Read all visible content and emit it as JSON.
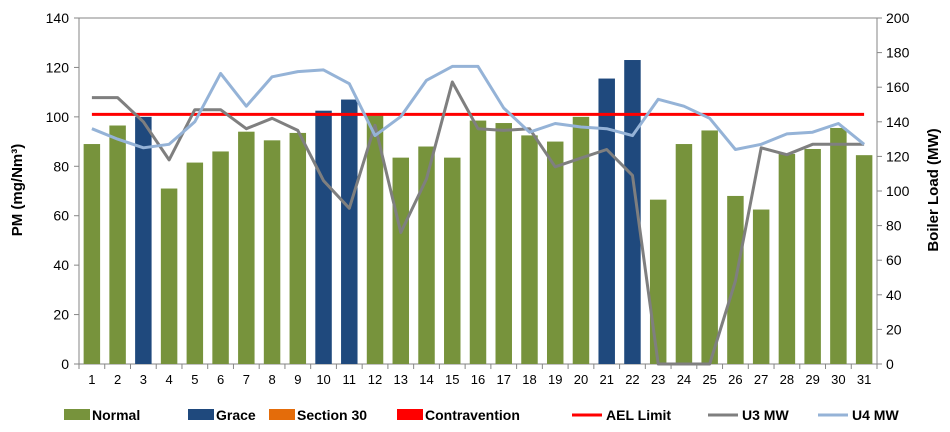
{
  "chart_data": {
    "type": "bar",
    "categories": [
      "1",
      "2",
      "3",
      "4",
      "5",
      "6",
      "7",
      "8",
      "9",
      "10",
      "11",
      "12",
      "13",
      "14",
      "15",
      "16",
      "17",
      "18",
      "19",
      "20",
      "21",
      "22",
      "23",
      "24",
      "25",
      "26",
      "27",
      "28",
      "29",
      "30",
      "31"
    ],
    "bars": {
      "values": [
        89,
        96.5,
        100,
        71,
        81.5,
        86,
        94,
        90.5,
        93.5,
        102.5,
        107,
        100.5,
        83.5,
        88,
        83.5,
        98.5,
        97.5,
        92.5,
        90,
        100,
        115.5,
        123,
        66.5,
        89,
        94.5,
        68,
        62.5,
        85,
        87,
        95.5,
        84.5
      ],
      "category": [
        "Normal",
        "Normal",
        "Grace",
        "Normal",
        "Normal",
        "Normal",
        "Normal",
        "Normal",
        "Normal",
        "Grace",
        "Grace",
        "Normal",
        "Normal",
        "Normal",
        "Normal",
        "Normal",
        "Normal",
        "Normal",
        "Normal",
        "Normal",
        "Grace",
        "Grace",
        "Normal",
        "Normal",
        "Normal",
        "Normal",
        "Normal",
        "Normal",
        "Normal",
        "Normal",
        "Normal"
      ]
    },
    "lines": [
      {
        "name": "AEL Limit",
        "axis": "left",
        "values": [
          101,
          101,
          101,
          101,
          101,
          101,
          101,
          101,
          101,
          101,
          101,
          101,
          101,
          101,
          101,
          101,
          101,
          101,
          101,
          101,
          101,
          101,
          101,
          101,
          101,
          101,
          101,
          101,
          101,
          101,
          101
        ]
      },
      {
        "name": "U3 MW",
        "axis": "right",
        "values": [
          154,
          154,
          140,
          118,
          147,
          147,
          136,
          142,
          135,
          106,
          90,
          138,
          76,
          107,
          163,
          136,
          135,
          136,
          114,
          119,
          124,
          109,
          0,
          0,
          0,
          48,
          125,
          121,
          127,
          127,
          127
        ]
      },
      {
        "name": "U4 MW",
        "axis": "right",
        "values": [
          136,
          130,
          125,
          127,
          140,
          168,
          149,
          166,
          169,
          170,
          162,
          132,
          143,
          164,
          172,
          172,
          148,
          134,
          139,
          137,
          136,
          132,
          153,
          149,
          142,
          124,
          127,
          133,
          134,
          139,
          127
        ]
      }
    ],
    "ylabel": "PM (mg/Nm³)",
    "y2label": "Boiler Load (MW)",
    "ylim": [
      0,
      140
    ],
    "y2lim": [
      0,
      200
    ],
    "yticks": [
      0,
      20,
      40,
      60,
      80,
      100,
      120,
      140
    ],
    "y2ticks": [
      0,
      20,
      40,
      60,
      80,
      100,
      120,
      140,
      160,
      180,
      200
    ],
    "grid": false,
    "legend_position": "bottom",
    "legend": [
      {
        "label": "Normal",
        "kind": "box"
      },
      {
        "label": "Grace",
        "kind": "box"
      },
      {
        "label": "Section 30",
        "kind": "box"
      },
      {
        "label": "Contravention",
        "kind": "box"
      },
      {
        "label": "AEL Limit",
        "kind": "line"
      },
      {
        "label": "U3 MW",
        "kind": "line"
      },
      {
        "label": "U4 MW",
        "kind": "line"
      }
    ],
    "colors": {
      "Normal": "#77933C",
      "Grace": "#1F497D",
      "Section 30": "#E46C0A",
      "Contravention": "#FF0000",
      "AEL Limit": "#FF0000",
      "U3 MW": "#7F7F7F",
      "U4 MW": "#95B3D7"
    }
  }
}
